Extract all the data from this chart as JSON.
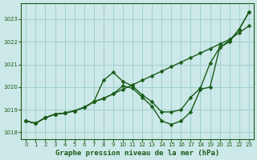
{
  "title": "Graphe pression niveau de la mer (hPa)",
  "background_color": "#cce8e8",
  "grid_color": "#99cccc",
  "line_color": "#1a5c1a",
  "xlim": [
    -0.5,
    23.5
  ],
  "ylim": [
    1017.7,
    1023.7
  ],
  "yticks": [
    1018,
    1019,
    1020,
    1021,
    1022,
    1023
  ],
  "xticks": [
    0,
    1,
    2,
    3,
    4,
    5,
    6,
    7,
    8,
    9,
    10,
    11,
    12,
    13,
    14,
    15,
    16,
    17,
    18,
    19,
    20,
    21,
    22,
    23
  ],
  "series1_x": [
    0,
    1,
    2,
    3,
    4,
    5,
    6,
    7,
    8,
    9,
    10,
    11,
    12,
    13,
    14,
    15,
    16,
    17,
    18,
    19,
    20,
    21,
    22,
    23
  ],
  "series1_y": [
    1018.5,
    1018.4,
    1018.65,
    1018.8,
    1018.85,
    1018.95,
    1019.1,
    1019.35,
    1019.5,
    1019.7,
    1019.9,
    1020.1,
    1020.3,
    1020.5,
    1020.7,
    1020.9,
    1021.1,
    1021.3,
    1021.5,
    1021.7,
    1021.9,
    1022.1,
    1022.4,
    1022.7
  ],
  "series2_x": [
    0,
    1,
    2,
    3,
    4,
    5,
    6,
    7,
    8,
    9,
    10,
    11,
    12,
    13,
    14,
    15,
    16,
    17,
    18,
    19,
    20,
    21,
    22,
    23
  ],
  "series2_y": [
    1018.5,
    1018.4,
    1018.65,
    1018.8,
    1018.85,
    1018.95,
    1019.1,
    1019.35,
    1020.3,
    1020.65,
    1020.25,
    1020.05,
    1019.65,
    1019.35,
    1018.9,
    1018.9,
    1019.0,
    1019.55,
    1019.95,
    1021.05,
    1021.75,
    1022.0,
    1022.55,
    1023.3
  ],
  "series3_x": [
    0,
    1,
    2,
    3,
    4,
    5,
    6,
    7,
    8,
    9,
    10,
    11,
    12,
    13,
    14,
    15,
    16,
    17,
    18,
    19,
    20,
    21,
    22,
    23
  ],
  "series3_y": [
    1018.5,
    1018.4,
    1018.65,
    1018.8,
    1018.85,
    1018.95,
    1019.1,
    1019.35,
    1019.5,
    1019.7,
    1020.05,
    1019.95,
    1019.55,
    1019.15,
    1018.5,
    1018.35,
    1018.5,
    1018.9,
    1019.9,
    1020.0,
    1021.75,
    1022.05,
    1022.55,
    1023.3
  ],
  "marker": "D",
  "marker_size": 2.5,
  "linewidth": 1.0,
  "title_fontsize": 6.5,
  "tick_fontsize": 5.0,
  "ylabel_fontsize": 5.0
}
